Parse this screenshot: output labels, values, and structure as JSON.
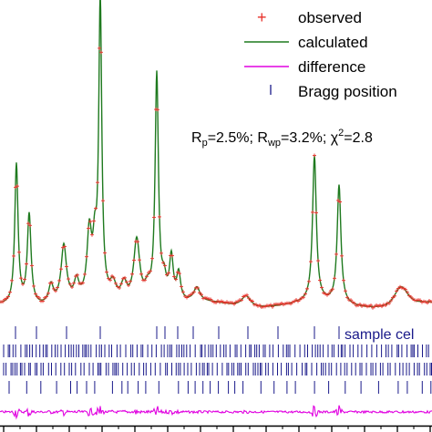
{
  "chart_data": {
    "type": "line",
    "title": "",
    "xlabel": "",
    "ylabel": "",
    "colors": {
      "observed": "#e8302a",
      "calculated": "#1f7a1f",
      "difference": "#e000e0",
      "bragg": "#1a1a8a"
    },
    "legend": {
      "placement": "top-right",
      "entries": [
        {
          "key": "observed",
          "label": "observed",
          "marker": "plus"
        },
        {
          "key": "calculated",
          "label": "calculated",
          "marker": "line"
        },
        {
          "key": "difference",
          "label": "difference",
          "marker": "line"
        },
        {
          "key": "bragg",
          "label": "Bragg position",
          "marker": "tick"
        }
      ]
    },
    "stats": {
      "rp_prefix": "R",
      "rp_sub": "p",
      "rp_value": "=2.5%; ",
      "rwp_prefix": "R",
      "rwp_sub": "wp",
      "rwp_value": "=3.2%; ",
      "chi_prefix": "χ",
      "chi_sup": "2",
      "chi_value": "=2.8"
    },
    "phase_label": "sample cel",
    "series": [
      {
        "name": "calculated",
        "baseline": 335,
        "peaks": [
          {
            "x": 18,
            "h": 155,
            "w": 2.2
          },
          {
            "x": 32,
            "h": 100,
            "w": 2.5
          },
          {
            "x": 56,
            "h": 20,
            "w": 3
          },
          {
            "x": 70,
            "h": 62,
            "w": 3.5
          },
          {
            "x": 84,
            "h": 20,
            "w": 3
          },
          {
            "x": 98,
            "h": 72,
            "w": 3
          },
          {
            "x": 104,
            "h": 50,
            "w": 2.5
          },
          {
            "x": 110,
            "h": 326,
            "w": 2.0
          },
          {
            "x": 124,
            "h": 18,
            "w": 4
          },
          {
            "x": 136,
            "h": 20,
            "w": 4
          },
          {
            "x": 150,
            "h": 70,
            "w": 4
          },
          {
            "x": 162,
            "h": 15,
            "w": 4
          },
          {
            "x": 172,
            "h": 250,
            "w": 2.2
          },
          {
            "x": 180,
            "h": 22,
            "w": 3
          },
          {
            "x": 188,
            "h": 48,
            "w": 2.5
          },
          {
            "x": 196,
            "h": 30,
            "w": 2.5
          },
          {
            "x": 216,
            "h": 15,
            "w": 4
          },
          {
            "x": 270,
            "h": 12,
            "w": 6
          },
          {
            "x": 345,
            "h": 160,
            "w": 2.5
          },
          {
            "x": 372,
            "h": 130,
            "w": 2.5
          },
          {
            "x": 440,
            "h": 10,
            "w": 8
          }
        ]
      }
    ],
    "bragg_rows": [
      {
        "name": "sample cel",
        "ticks": [
          17,
          40,
          73,
          110,
          172,
          181,
          195,
          212,
          240,
          272,
          305,
          345,
          372
        ]
      },
      {
        "name": "row2",
        "density": "dense"
      },
      {
        "name": "row3",
        "density": "dense"
      },
      {
        "name": "row4",
        "density": "sparse"
      }
    ],
    "x_axis": {
      "tick_count_major": 13,
      "tick_count_minor": 26
    }
  }
}
